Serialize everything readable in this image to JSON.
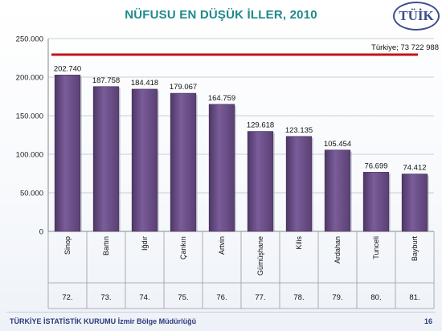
{
  "logo": {
    "text": "TÜİK"
  },
  "footer": {
    "text": "TÜRKİYE İSTATİSTİK KURUMU İzmir Bölge Müdürlüğü",
    "page": "16"
  },
  "chart_data": {
    "type": "bar",
    "title": "NÜFUSU EN DÜŞÜK İLLER, 2010",
    "categories": [
      "Sinop",
      "Bartın",
      "Iğdır",
      "Çankırı",
      "Artvin",
      "Gümüşhane",
      "Kilis",
      "Ardahan",
      "Tunceli",
      "Bayburt"
    ],
    "ranks": [
      "72.",
      "73.",
      "74.",
      "75.",
      "76.",
      "77.",
      "78.",
      "79.",
      "80.",
      "81."
    ],
    "values": [
      202740,
      187758,
      184418,
      179067,
      164759,
      129618,
      123135,
      105454,
      76699,
      74412
    ],
    "value_labels": [
      "202.740",
      "187.758",
      "184.418",
      "179.067",
      "164.759",
      "129.618",
      "123.135",
      "105.454",
      "76.699",
      "74.412"
    ],
    "ylim": [
      0,
      250000
    ],
    "yticks": [
      0,
      50000,
      100000,
      150000,
      200000,
      250000
    ],
    "ytick_labels": [
      "0",
      "50.000",
      "100.000",
      "150.000",
      "200.000",
      "250.000"
    ],
    "reference_line": {
      "value": 73722988,
      "label": "Türkiye; 73 722 988",
      "color": "#c0151b"
    },
    "bar_color": "#6a4d86",
    "grid": true
  }
}
